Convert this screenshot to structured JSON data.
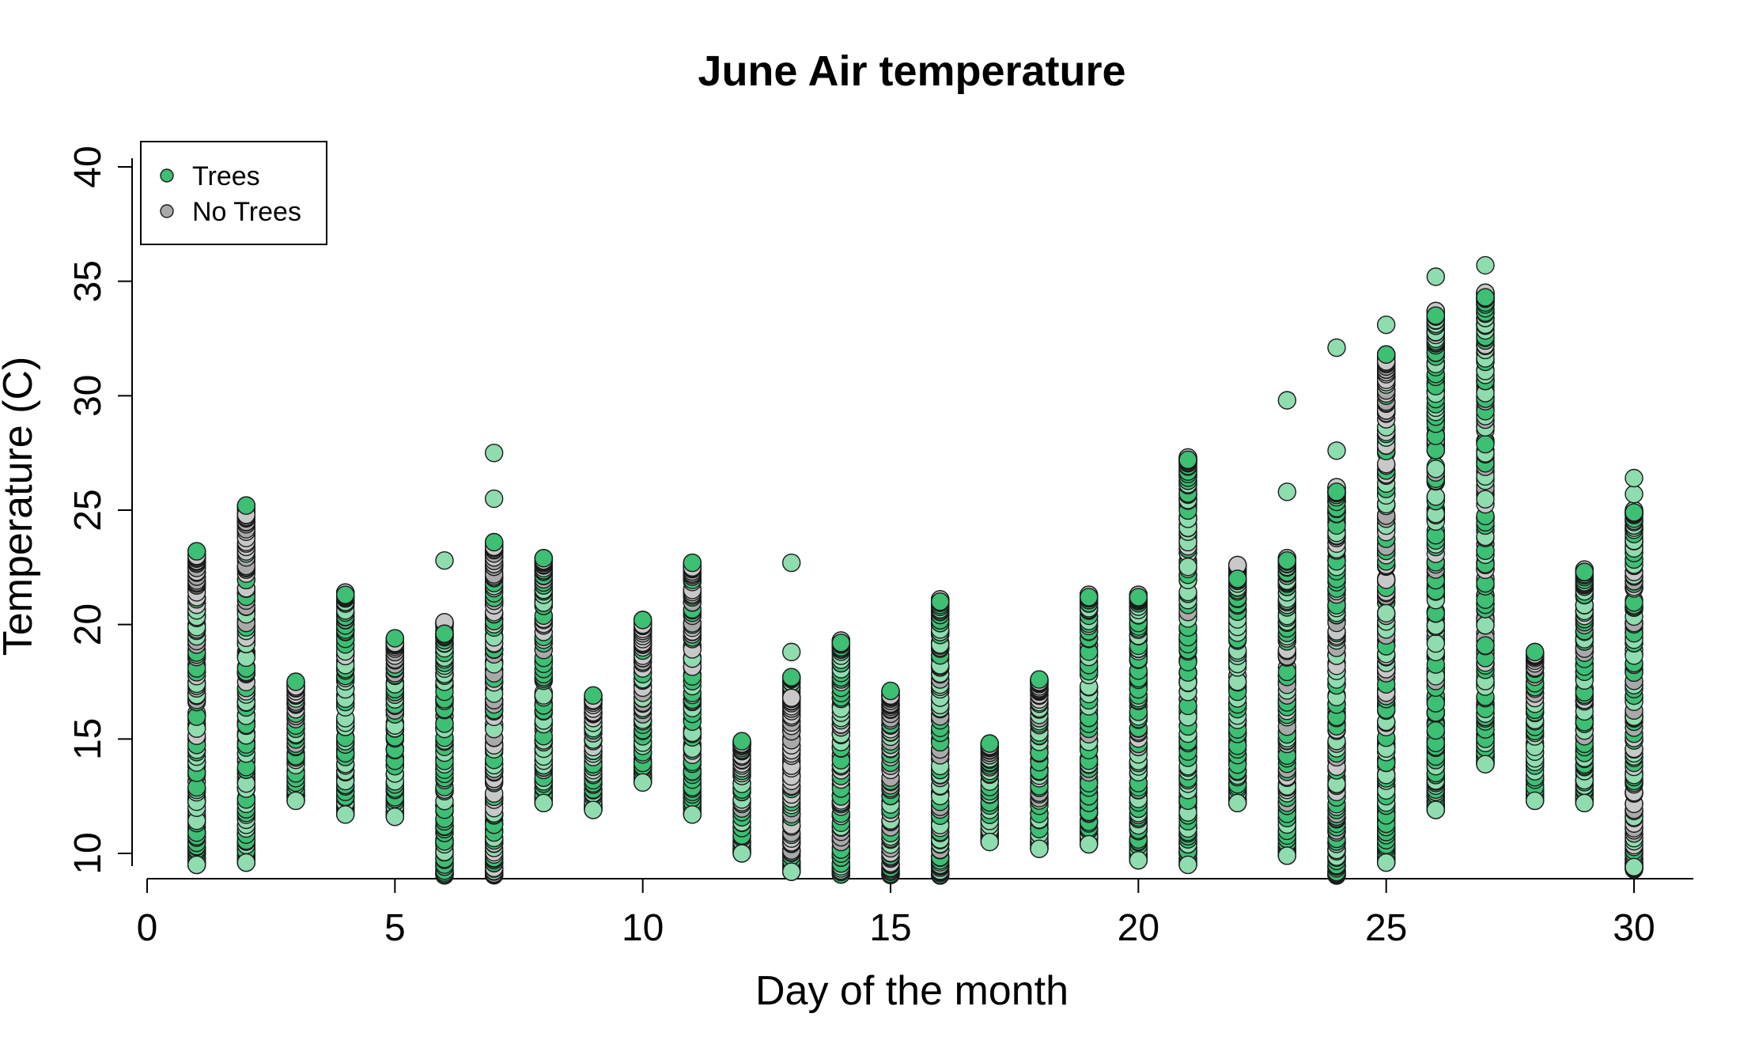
{
  "chart_data": {
    "type": "scatter",
    "title": "June Air temperature",
    "xlabel": "Day of the month",
    "ylabel": "Temperature (C)",
    "xlim": [
      0,
      31
    ],
    "ylim": [
      9,
      40
    ],
    "xticks": [
      0,
      5,
      10,
      15,
      20,
      25,
      30
    ],
    "yticks": [
      10,
      15,
      20,
      25,
      30,
      35,
      40
    ],
    "grid": false,
    "legend_position": "top-left",
    "series": [
      {
        "name": "Trees",
        "color": "#3dbf74",
        "light_color": "#8fdcaf",
        "ranges": [
          {
            "day": 1,
            "min": 9.5,
            "max": 23.2
          },
          {
            "day": 2,
            "min": 9.6,
            "max": 25.2
          },
          {
            "day": 3,
            "min": 12.3,
            "max": 17.5
          },
          {
            "day": 4,
            "min": 11.7,
            "max": 21.3
          },
          {
            "day": 5,
            "min": 11.6,
            "max": 19.4
          },
          {
            "day": 6,
            "min": 9.0,
            "max": 19.6
          },
          {
            "day": 7,
            "min": 9.0,
            "max": 23.6
          },
          {
            "day": 8,
            "min": 12.2,
            "max": 22.9
          },
          {
            "day": 9,
            "min": 11.9,
            "max": 16.9
          },
          {
            "day": 10,
            "min": 13.1,
            "max": 20.2
          },
          {
            "day": 11,
            "min": 11.7,
            "max": 22.7
          },
          {
            "day": 12,
            "min": 10.0,
            "max": 14.9
          },
          {
            "day": 13,
            "min": 9.2,
            "max": 17.7
          },
          {
            "day": 14,
            "min": 9.0,
            "max": 19.2
          },
          {
            "day": 15,
            "min": 9.0,
            "max": 17.1
          },
          {
            "day": 16,
            "min": 9.0,
            "max": 21.0
          },
          {
            "day": 17,
            "min": 10.5,
            "max": 14.8
          },
          {
            "day": 18,
            "min": 10.2,
            "max": 17.6
          },
          {
            "day": 19,
            "min": 10.4,
            "max": 21.2
          },
          {
            "day": 20,
            "min": 9.7,
            "max": 21.2
          },
          {
            "day": 21,
            "min": 9.5,
            "max": 27.2
          },
          {
            "day": 22,
            "min": 12.2,
            "max": 22.0
          },
          {
            "day": 23,
            "min": 9.9,
            "max": 22.8
          },
          {
            "day": 24,
            "min": 9.0,
            "max": 25.8
          },
          {
            "day": 25,
            "min": 9.6,
            "max": 31.8
          },
          {
            "day": 26,
            "min": 11.9,
            "max": 33.5
          },
          {
            "day": 27,
            "min": 13.9,
            "max": 34.3
          },
          {
            "day": 28,
            "min": 12.3,
            "max": 18.8
          },
          {
            "day": 29,
            "min": 12.2,
            "max": 22.3
          },
          {
            "day": 30,
            "min": 9.4,
            "max": 24.9
          }
        ],
        "outliers": [
          {
            "day": 6,
            "value": 22.8
          },
          {
            "day": 7,
            "value": 25.5
          },
          {
            "day": 7,
            "value": 27.5
          },
          {
            "day": 13,
            "value": 18.8
          },
          {
            "day": 13,
            "value": 22.7
          },
          {
            "day": 23,
            "value": 25.8
          },
          {
            "day": 23,
            "value": 29.8
          },
          {
            "day": 24,
            "value": 27.6
          },
          {
            "day": 24,
            "value": 32.1
          },
          {
            "day": 25,
            "value": 33.1
          },
          {
            "day": 26,
            "value": 35.2
          },
          {
            "day": 27,
            "value": 35.7
          },
          {
            "day": 30,
            "value": 25.7
          },
          {
            "day": 30,
            "value": 26.4
          }
        ]
      },
      {
        "name": "No Trees",
        "color": "#a9a9a9",
        "light_color": "#c8c8c8",
        "ranges": [
          {
            "day": 1,
            "min": 10.0,
            "max": 23.0
          },
          {
            "day": 2,
            "min": 10.2,
            "max": 24.8
          },
          {
            "day": 3,
            "min": 12.5,
            "max": 17.3
          },
          {
            "day": 4,
            "min": 12.0,
            "max": 21.4
          },
          {
            "day": 5,
            "min": 12.0,
            "max": 19.2
          },
          {
            "day": 6,
            "min": 9.0,
            "max": 20.1
          },
          {
            "day": 7,
            "min": 9.0,
            "max": 23.4
          },
          {
            "day": 8,
            "min": 12.4,
            "max": 22.8
          },
          {
            "day": 9,
            "min": 12.0,
            "max": 16.7
          },
          {
            "day": 10,
            "min": 13.3,
            "max": 20.0
          },
          {
            "day": 11,
            "min": 12.0,
            "max": 22.5
          },
          {
            "day": 12,
            "min": 10.1,
            "max": 14.8
          },
          {
            "day": 13,
            "min": 9.2,
            "max": 16.8
          },
          {
            "day": 14,
            "min": 9.0,
            "max": 19.3
          },
          {
            "day": 15,
            "min": 9.0,
            "max": 16.9
          },
          {
            "day": 16,
            "min": 9.0,
            "max": 21.1
          },
          {
            "day": 17,
            "min": 10.7,
            "max": 14.7
          },
          {
            "day": 18,
            "min": 10.4,
            "max": 17.5
          },
          {
            "day": 19,
            "min": 10.6,
            "max": 21.3
          },
          {
            "day": 20,
            "min": 9.8,
            "max": 21.3
          },
          {
            "day": 21,
            "min": 10.0,
            "max": 27.3
          },
          {
            "day": 22,
            "min": 12.6,
            "max": 22.6
          },
          {
            "day": 23,
            "min": 10.0,
            "max": 22.9
          },
          {
            "day": 24,
            "min": 9.0,
            "max": 26.0
          },
          {
            "day": 25,
            "min": 10.0,
            "max": 31.5
          },
          {
            "day": 26,
            "min": 12.5,
            "max": 33.7
          },
          {
            "day": 27,
            "min": 14.2,
            "max": 34.5
          },
          {
            "day": 28,
            "min": 12.5,
            "max": 18.7
          },
          {
            "day": 29,
            "min": 12.3,
            "max": 22.4
          },
          {
            "day": 30,
            "min": 9.3,
            "max": 25.0
          }
        ],
        "outliers": []
      }
    ]
  }
}
